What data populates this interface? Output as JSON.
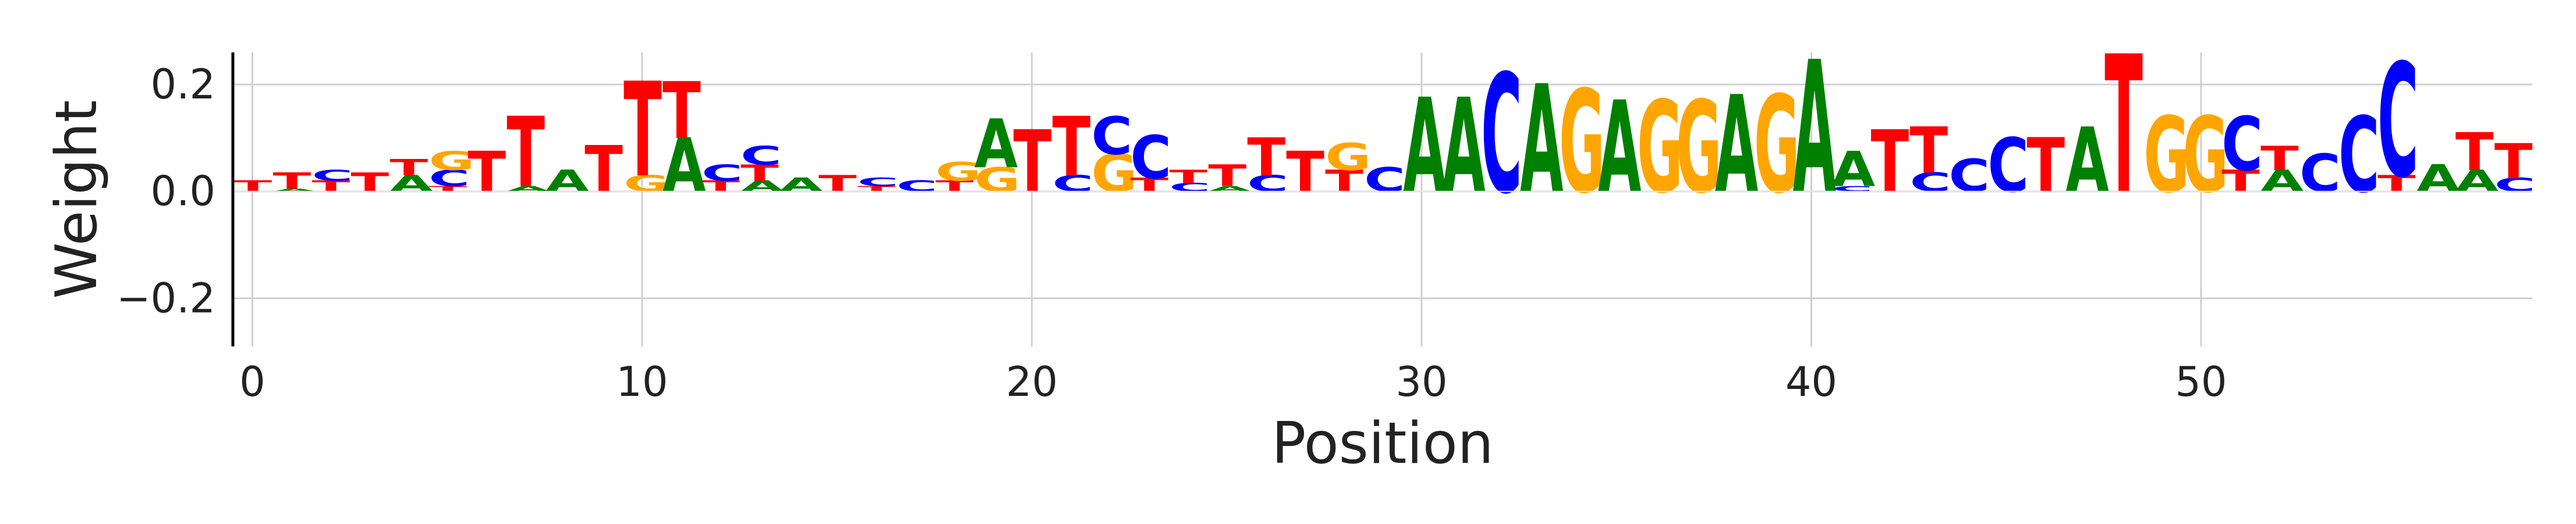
{
  "chart_data": {
    "type": "sequence_logo",
    "title": "",
    "xlabel": "Position",
    "ylabel": "Weight",
    "xlim": [
      -0.5,
      58.5
    ],
    "ylim": [
      -0.29,
      0.26
    ],
    "xticks": [
      0,
      10,
      20,
      30,
      40,
      50
    ],
    "yticks": [
      -0.2,
      0.0,
      0.2
    ],
    "ytick_labels": [
      "−0.2",
      "0.0",
      "0.2"
    ],
    "grid": true,
    "colors": {
      "A": "#008000",
      "C": "#0000ff",
      "G": "#ffa500",
      "T": "#ff0000"
    },
    "positions": [
      {
        "pos": 0,
        "stack": [
          {
            "letter": "T",
            "value": 0.02
          }
        ]
      },
      {
        "pos": 1,
        "stack": [
          {
            "letter": "A",
            "value": 0.005
          },
          {
            "letter": "T",
            "value": 0.03
          }
        ]
      },
      {
        "pos": 2,
        "stack": [
          {
            "letter": "T",
            "value": 0.02
          },
          {
            "letter": "C",
            "value": 0.02
          }
        ]
      },
      {
        "pos": 3,
        "stack": [
          {
            "letter": "T",
            "value": 0.035
          }
        ]
      },
      {
        "pos": 4,
        "stack": [
          {
            "letter": "A",
            "value": 0.03
          },
          {
            "letter": "T",
            "value": 0.03
          }
        ]
      },
      {
        "pos": 5,
        "stack": [
          {
            "letter": "T",
            "value": 0.01
          },
          {
            "letter": "C",
            "value": 0.03
          },
          {
            "letter": "G",
            "value": 0.035
          }
        ]
      },
      {
        "pos": 6,
        "stack": [
          {
            "letter": "T",
            "value": 0.075
          }
        ]
      },
      {
        "pos": 7,
        "stack": [
          {
            "letter": "A",
            "value": 0.01
          },
          {
            "letter": "T",
            "value": 0.13
          }
        ]
      },
      {
        "pos": 8,
        "stack": [
          {
            "letter": "A",
            "value": 0.04
          }
        ]
      },
      {
        "pos": 9,
        "stack": [
          {
            "letter": "T",
            "value": 0.085
          }
        ]
      },
      {
        "pos": 10,
        "stack": [
          {
            "letter": "G",
            "value": 0.03
          },
          {
            "letter": "T",
            "value": 0.175
          }
        ]
      },
      {
        "pos": 11,
        "stack": [
          {
            "letter": "A",
            "value": 0.1
          },
          {
            "letter": "T",
            "value": 0.105
          }
        ]
      },
      {
        "pos": 12,
        "stack": [
          {
            "letter": "T",
            "value": 0.02
          },
          {
            "letter": "C",
            "value": 0.03
          }
        ]
      },
      {
        "pos": 13,
        "stack": [
          {
            "letter": "A",
            "value": 0.02
          },
          {
            "letter": "T",
            "value": 0.03
          },
          {
            "letter": "C",
            "value": 0.035
          }
        ]
      },
      {
        "pos": 14,
        "stack": [
          {
            "letter": "A",
            "value": 0.025
          }
        ]
      },
      {
        "pos": 15,
        "stack": [
          {
            "letter": "T",
            "value": 0.03
          }
        ]
      },
      {
        "pos": 16,
        "stack": [
          {
            "letter": "T",
            "value": 0.01
          },
          {
            "letter": "C",
            "value": 0.015
          }
        ]
      },
      {
        "pos": 17,
        "stack": [
          {
            "letter": "C",
            "value": 0.02
          }
        ]
      },
      {
        "pos": 18,
        "stack": [
          {
            "letter": "T",
            "value": 0.02
          },
          {
            "letter": "G",
            "value": 0.035
          }
        ]
      },
      {
        "pos": 19,
        "stack": [
          {
            "letter": "G",
            "value": 0.045
          },
          {
            "letter": "A",
            "value": 0.09
          }
        ]
      },
      {
        "pos": 20,
        "stack": [
          {
            "letter": "T",
            "value": 0.115
          }
        ]
      },
      {
        "pos": 21,
        "stack": [
          {
            "letter": "C",
            "value": 0.03
          },
          {
            "letter": "T",
            "value": 0.11
          }
        ]
      },
      {
        "pos": 22,
        "stack": [
          {
            "letter": "G",
            "value": 0.07
          },
          {
            "letter": "C",
            "value": 0.07
          }
        ]
      },
      {
        "pos": 23,
        "stack": [
          {
            "letter": "T",
            "value": 0.025
          },
          {
            "letter": "C",
            "value": 0.08
          }
        ]
      },
      {
        "pos": 24,
        "stack": [
          {
            "letter": "C",
            "value": 0.015
          },
          {
            "letter": "T",
            "value": 0.025
          }
        ]
      },
      {
        "pos": 25,
        "stack": [
          {
            "letter": "A",
            "value": 0.01
          },
          {
            "letter": "T",
            "value": 0.04
          }
        ]
      },
      {
        "pos": 26,
        "stack": [
          {
            "letter": "C",
            "value": 0.03
          },
          {
            "letter": "T",
            "value": 0.07
          }
        ]
      },
      {
        "pos": 27,
        "stack": [
          {
            "letter": "T",
            "value": 0.075
          }
        ]
      },
      {
        "pos": 28,
        "stack": [
          {
            "letter": "T",
            "value": 0.04
          },
          {
            "letter": "G",
            "value": 0.05
          }
        ]
      },
      {
        "pos": 29,
        "stack": [
          {
            "letter": "C",
            "value": 0.045
          }
        ]
      },
      {
        "pos": 30,
        "stack": [
          {
            "letter": "A",
            "value": 0.175
          }
        ]
      },
      {
        "pos": 31,
        "stack": [
          {
            "letter": "A",
            "value": 0.175
          }
        ]
      },
      {
        "pos": 32,
        "stack": [
          {
            "letter": "C",
            "value": 0.22
          }
        ]
      },
      {
        "pos": 33,
        "stack": [
          {
            "letter": "A",
            "value": 0.2
          }
        ]
      },
      {
        "pos": 34,
        "stack": [
          {
            "letter": "G",
            "value": 0.19
          }
        ]
      },
      {
        "pos": 35,
        "stack": [
          {
            "letter": "A",
            "value": 0.17
          }
        ]
      },
      {
        "pos": 36,
        "stack": [
          {
            "letter": "G",
            "value": 0.17
          }
        ]
      },
      {
        "pos": 37,
        "stack": [
          {
            "letter": "G",
            "value": 0.17
          }
        ]
      },
      {
        "pos": 38,
        "stack": [
          {
            "letter": "A",
            "value": 0.18
          }
        ]
      },
      {
        "pos": 39,
        "stack": [
          {
            "letter": "G",
            "value": 0.18
          }
        ]
      },
      {
        "pos": 40,
        "stack": [
          {
            "letter": "A",
            "value": 0.245
          }
        ]
      },
      {
        "pos": 41,
        "stack": [
          {
            "letter": "C",
            "value": 0.01
          },
          {
            "letter": "A",
            "value": 0.065
          }
        ]
      },
      {
        "pos": 42,
        "stack": [
          {
            "letter": "T",
            "value": 0.115
          }
        ]
      },
      {
        "pos": 43,
        "stack": [
          {
            "letter": "C",
            "value": 0.035
          },
          {
            "letter": "T",
            "value": 0.085
          }
        ]
      },
      {
        "pos": 44,
        "stack": [
          {
            "letter": "C",
            "value": 0.06
          }
        ]
      },
      {
        "pos": 45,
        "stack": [
          {
            "letter": "C",
            "value": 0.1
          }
        ]
      },
      {
        "pos": 46,
        "stack": [
          {
            "letter": "T",
            "value": 0.1
          }
        ]
      },
      {
        "pos": 47,
        "stack": [
          {
            "letter": "A",
            "value": 0.12
          }
        ]
      },
      {
        "pos": 48,
        "stack": [
          {
            "letter": "T",
            "value": 0.255
          }
        ]
      },
      {
        "pos": 49,
        "stack": [
          {
            "letter": "G",
            "value": 0.14
          }
        ]
      },
      {
        "pos": 50,
        "stack": [
          {
            "letter": "G",
            "value": 0.14
          }
        ]
      },
      {
        "pos": 51,
        "stack": [
          {
            "letter": "T",
            "value": 0.04
          },
          {
            "letter": "C",
            "value": 0.1
          }
        ]
      },
      {
        "pos": 52,
        "stack": [
          {
            "letter": "A",
            "value": 0.04
          },
          {
            "letter": "T",
            "value": 0.045
          }
        ]
      },
      {
        "pos": 53,
        "stack": [
          {
            "letter": "C",
            "value": 0.07
          }
        ]
      },
      {
        "pos": 54,
        "stack": [
          {
            "letter": "C",
            "value": 0.14
          }
        ]
      },
      {
        "pos": 55,
        "stack": [
          {
            "letter": "T",
            "value": 0.03
          },
          {
            "letter": "C",
            "value": 0.21
          }
        ]
      },
      {
        "pos": 56,
        "stack": [
          {
            "letter": "A",
            "value": 0.05
          }
        ]
      },
      {
        "pos": 57,
        "stack": [
          {
            "letter": "A",
            "value": 0.04
          },
          {
            "letter": "T",
            "value": 0.07
          }
        ]
      },
      {
        "pos": 58,
        "stack": [
          {
            "letter": "C",
            "value": 0.025
          },
          {
            "letter": "T",
            "value": 0.065
          }
        ]
      }
    ]
  }
}
